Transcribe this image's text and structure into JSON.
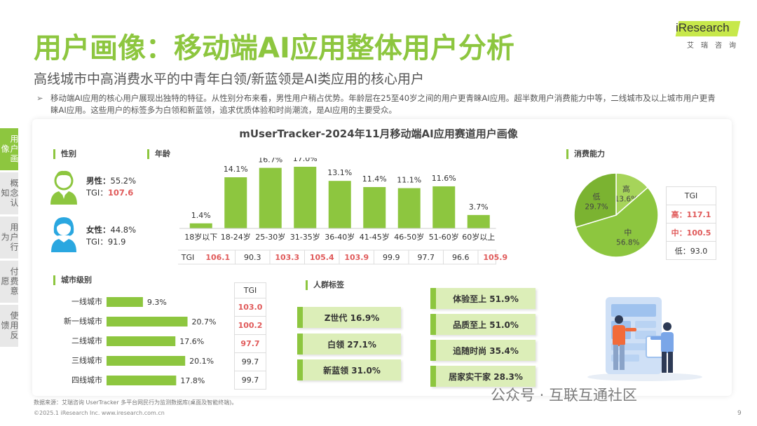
{
  "header": {
    "title": "用户画像：移动端AI应用整体用户分析",
    "subtitle": "高线城市中高消费水平的中青年白领/新蓝领是AI类应用的核心用户",
    "summary": "移动端AI应用的核心用户展现出独特的特征。从性别分布来看，男性用户稍占优势。年龄层在25至40岁之间的用户更青睐AI应用。超半数用户消费能力中等，二线城市及以上城市用户更青睐AI应用。这些用户的标签多为白领和新蓝领，追求优质体验和时尚潮流，是AI应用的主要受众。",
    "summary_bullet": "➢"
  },
  "logo": {
    "word": "iResearch",
    "cn": "艾瑞咨询"
  },
  "sidenav": [
    {
      "label": "用户画像",
      "active": true
    },
    {
      "label": "概念认知",
      "active": false
    },
    {
      "label": "用户行为",
      "active": false
    },
    {
      "label": "付费意愿",
      "active": false
    },
    {
      "label": "使用反馈",
      "active": false
    }
  ],
  "panel_title": "mUserTracker-2024年11月移动端AI应用赛道用户画像",
  "gender": {
    "heading": "性别",
    "male": {
      "label": "男性：",
      "value": "55.2%",
      "tgi_label": "TGI：",
      "tgi": "107.6"
    },
    "female": {
      "label": "女性：",
      "value": "44.8%",
      "tgi_label": "TGI：",
      "tgi": "91.9"
    }
  },
  "consumption_heading": "消费能力",
  "consumption_tgi": {
    "header": "TGI",
    "rows": [
      {
        "label": "高：",
        "value": "117.1",
        "highlight": true
      },
      {
        "label": "中：",
        "value": "100.5",
        "highlight": true
      },
      {
        "label": "低：",
        "value": "93.0",
        "highlight": false
      }
    ]
  },
  "city_heading": "城市级别",
  "city_tgi_header": "TGI",
  "tags_heading": "人群标签",
  "tags": [
    {
      "label": "Z世代  16.9%"
    },
    {
      "label": "白领  27.1%"
    },
    {
      "label": "新蓝领  31.0%"
    },
    {
      "label": "体验至上  51.9%"
    },
    {
      "label": "品质至上  51.0%"
    },
    {
      "label": "追随时尚  35.4%"
    },
    {
      "label": "居家实干家  28.3%"
    }
  ],
  "footer": {
    "source": "数据来源：艾瑞咨询 UserTracker 多平台网民行为监测数据库(桌面及智能终端)。",
    "copyright": "©2025.1 iResearch Inc.                      www.iresearch.com.cn",
    "page": "9"
  },
  "watermark": "公众号 · 互联互通社区",
  "colors": {
    "accent": "#8dc63f",
    "highlight": "#e05a5a",
    "tag_bg": "#dceeb8"
  },
  "chart_data": [
    {
      "type": "bar",
      "name_ref": "age",
      "title": "年龄",
      "categories": [
        "18岁以下",
        "18-24岁",
        "25-30岁",
        "31-35岁",
        "36-40岁",
        "41-45岁",
        "46-50岁",
        "51-60岁",
        "60岁以上"
      ],
      "values": [
        1.4,
        14.1,
        16.7,
        17.0,
        13.1,
        11.4,
        11.1,
        11.6,
        3.7
      ],
      "value_labels": [
        "1.4%",
        "14.1%",
        "16.7%",
        "17.0%",
        "13.1%",
        "11.4%",
        "11.1%",
        "11.6%",
        "3.7%"
      ],
      "tgi_label": "TGI",
      "tgi": [
        "106.1",
        "90.3",
        "103.3",
        "105.4",
        "103.9",
        "99.9",
        "97.7",
        "96.6",
        "105.9"
      ],
      "tgi_highlight": [
        true,
        false,
        true,
        true,
        true,
        false,
        false,
        false,
        true
      ],
      "ylim": [
        0,
        17.0
      ]
    },
    {
      "type": "bar",
      "orientation": "horizontal",
      "title": "城市级别",
      "categories": [
        "一线城市",
        "新一线城市",
        "二线城市",
        "三线城市",
        "四线城市"
      ],
      "values": [
        9.3,
        20.7,
        17.6,
        20.1,
        17.8
      ],
      "value_labels": [
        "9.3%",
        "20.7%",
        "17.6%",
        "20.1%",
        "17.8%"
      ],
      "tgi": [
        "103.0",
        "100.2",
        "97.7",
        "99.7",
        "99.7"
      ],
      "tgi_highlight": [
        true,
        true,
        true,
        false,
        false
      ]
    },
    {
      "type": "pie",
      "title": "消费能力",
      "categories": [
        "高",
        "中",
        "低"
      ],
      "values": [
        13.6,
        56.8,
        29.7
      ],
      "value_labels": [
        "13.6%",
        "56.8%",
        "29.7%"
      ],
      "colors": [
        "#a6d45a",
        "#8dc63f",
        "#7bb331"
      ]
    }
  ]
}
